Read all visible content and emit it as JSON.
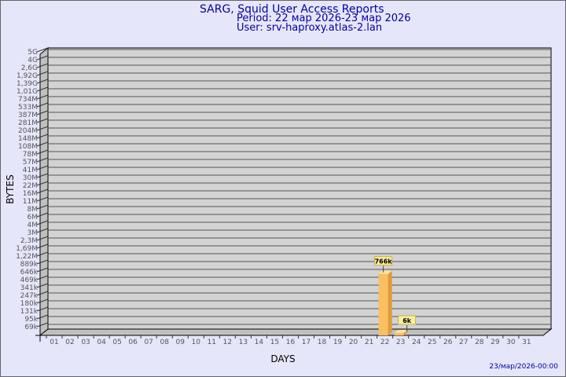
{
  "header": {
    "title": "SARG, Squid User Access Reports",
    "period": "Period: 22 мар 2026-23 мар 2026",
    "user": "User: srv-haproxy.atlas-2.lan"
  },
  "footer": {
    "timestamp": "23/мар/2026-00:00"
  },
  "colors": {
    "background": "#e6e6fa",
    "plot": "#d3d3d3",
    "bar": "#fbbf5f",
    "bar_side": "#e09a3a",
    "label_bg": "#f8f0a0",
    "title": "#0000a0"
  },
  "chart_data": {
    "type": "bar",
    "title": "SARG, Squid User Access Reports",
    "xlabel": "DAYS",
    "ylabel": "BYTES",
    "y_scale": "log",
    "y_ticks": [
      "5G",
      "4G",
      "2,6G",
      "1,92G",
      "1,39G",
      "1,01G",
      "734M",
      "533M",
      "387M",
      "281M",
      "204M",
      "148M",
      "108M",
      "78M",
      "57M",
      "41M",
      "30M",
      "22M",
      "16M",
      "11M",
      "8M",
      "6M",
      "4M",
      "3M",
      "2,3M",
      "1,69M",
      "1,22M",
      "889k",
      "646k",
      "469k",
      "341k",
      "247k",
      "180k",
      "131k",
      "95k",
      "69k"
    ],
    "categories": [
      "01",
      "02",
      "03",
      "04",
      "05",
      "06",
      "07",
      "08",
      "09",
      "10",
      "11",
      "12",
      "13",
      "14",
      "15",
      "16",
      "17",
      "18",
      "19",
      "20",
      "21",
      "22",
      "23",
      "24",
      "25",
      "26",
      "27",
      "28",
      "29",
      "30",
      "31"
    ],
    "bars": [
      {
        "day": "22",
        "value": 766000,
        "label": "766k"
      },
      {
        "day": "23",
        "value": 6000,
        "label": "6k"
      }
    ],
    "grid": true
  }
}
